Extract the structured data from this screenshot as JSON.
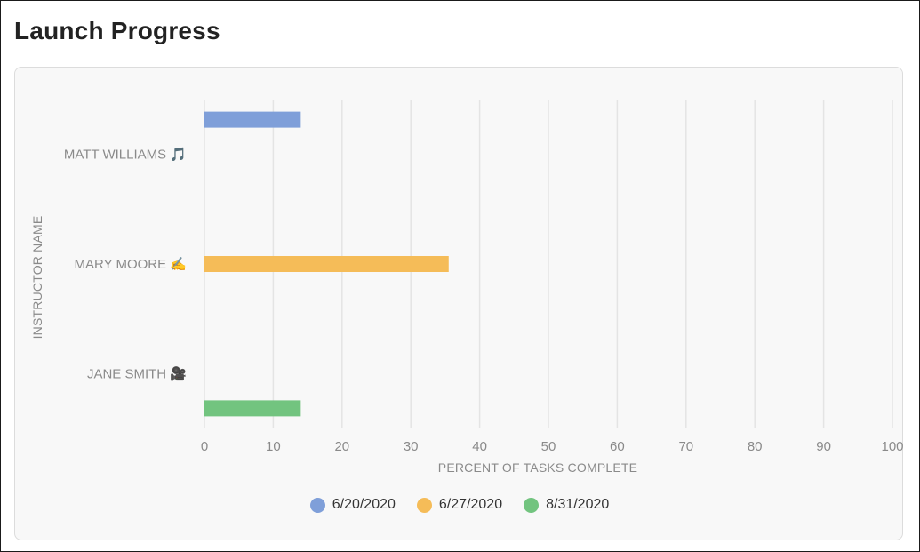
{
  "page": {
    "title": "Launch Progress"
  },
  "chart_data": {
    "type": "bar",
    "orientation": "horizontal",
    "categories": [
      "MATT WILLIAMS 🎵",
      "MARY MOORE ✍️",
      "JANE SMITH 🎥"
    ],
    "series": [
      {
        "name": "6/20/2020",
        "color": "#7f9fd9",
        "values": [
          14,
          null,
          null
        ]
      },
      {
        "name": "6/27/2020",
        "color": "#f5bc58",
        "values": [
          null,
          35.5,
          null
        ]
      },
      {
        "name": "8/31/2020",
        "color": "#72c47f",
        "values": [
          null,
          null,
          14
        ]
      }
    ],
    "xlabel": "PERCENT OF TASKS COMPLETE",
    "ylabel": "INSTRUCTOR NAME",
    "xlim": [
      0,
      100
    ],
    "xticks": [
      0,
      10,
      20,
      30,
      40,
      50,
      60,
      70,
      80,
      90,
      100
    ],
    "grid": true,
    "legend_position": "bottom"
  }
}
